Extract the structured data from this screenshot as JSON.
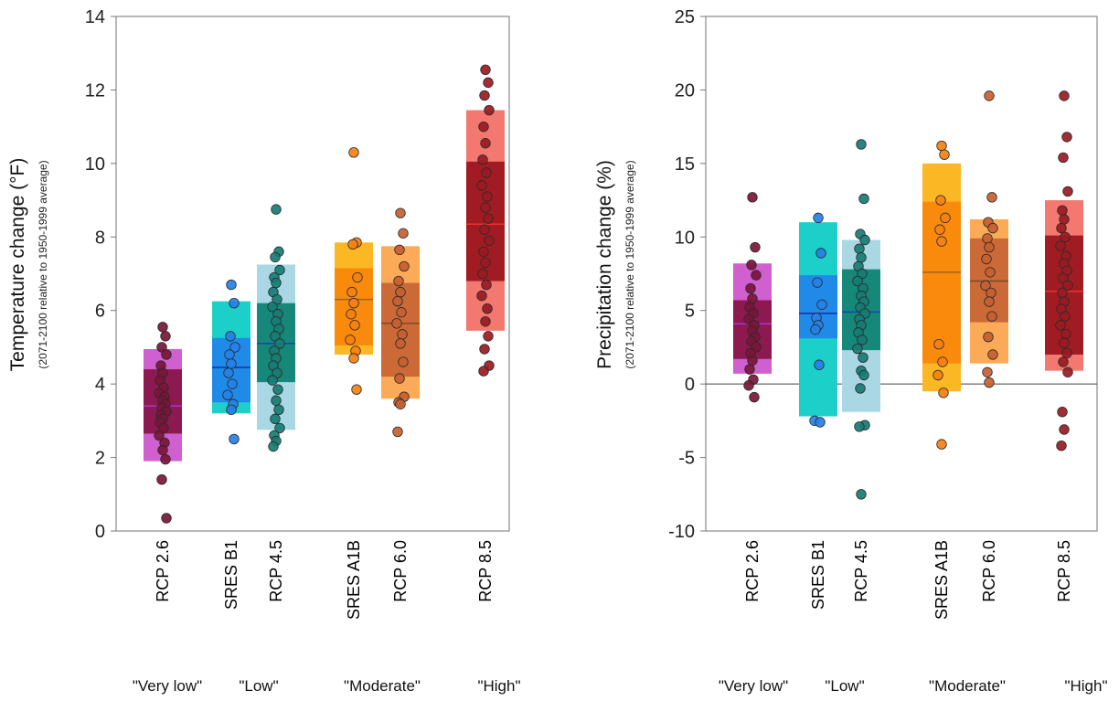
{
  "chart_data": [
    {
      "type": "scatter",
      "ylabel": "Temperature change (°F)",
      "ylabel_sub": "(2071-2100 relative to 1950-1999 average)",
      "ylim": [
        0,
        14
      ],
      "yticks": [
        "0",
        "2",
        "4",
        "6",
        "8",
        "10",
        "12",
        "14"
      ],
      "zero_line": false,
      "categories": [
        "RCP 2.6",
        "SRES B1",
        "RCP 4.5",
        "SRES A1B",
        "RCP 6.0",
        "RCP 8.5"
      ],
      "groups": [
        "\"Very low\"",
        "\"Low\"",
        "\"Moderate\"",
        "\"High\""
      ],
      "series": [
        {
          "category": "RCP 2.6",
          "range": [
            1.9,
            4.95
          ],
          "likely": [
            2.65,
            4.4
          ],
          "mean": 3.4,
          "points": [
            5.55,
            5.3,
            5.0,
            4.8,
            4.5,
            4.3,
            4.1,
            3.9,
            3.75,
            3.65,
            3.55,
            3.45,
            3.35,
            3.25,
            3.15,
            3.05,
            2.95,
            2.8,
            2.6,
            2.4,
            2.2,
            1.95,
            1.4,
            0.35
          ]
        },
        {
          "category": "SRES B1",
          "range": [
            3.2,
            6.25
          ],
          "likely": [
            3.5,
            5.25
          ],
          "mean": 4.45,
          "points": [
            6.7,
            6.2,
            5.3,
            5.0,
            4.8,
            4.55,
            4.3,
            4.0,
            3.7,
            3.45,
            3.3,
            2.5
          ]
        },
        {
          "category": "RCP 4.5",
          "range": [
            2.75,
            7.25
          ],
          "likely": [
            4.05,
            6.2
          ],
          "mean": 5.1,
          "points": [
            8.75,
            7.6,
            7.45,
            7.1,
            6.9,
            6.75,
            6.5,
            6.3,
            6.1,
            5.9,
            5.7,
            5.5,
            5.3,
            5.1,
            4.9,
            4.7,
            4.5,
            4.3,
            4.1,
            3.85,
            3.55,
            3.3,
            3.05,
            2.8,
            2.6,
            2.45,
            2.3
          ]
        },
        {
          "category": "SRES A1B",
          "range": [
            4.8,
            7.85
          ],
          "likely": [
            5.05,
            7.15
          ],
          "mean": 6.3,
          "points": [
            10.3,
            7.85,
            7.8,
            6.9,
            6.5,
            6.2,
            5.9,
            5.6,
            5.2,
            4.9,
            4.7,
            3.85
          ]
        },
        {
          "category": "RCP 6.0",
          "range": [
            3.6,
            7.75
          ],
          "likely": [
            4.2,
            6.75
          ],
          "mean": 5.65,
          "points": [
            8.65,
            8.1,
            7.65,
            7.2,
            6.8,
            6.5,
            6.25,
            5.95,
            5.65,
            5.35,
            5.1,
            4.6,
            4.15,
            3.65,
            3.5,
            3.45,
            2.7
          ]
        },
        {
          "category": "RCP 8.5",
          "range": [
            5.45,
            11.45
          ],
          "likely": [
            6.8,
            10.05
          ],
          "mean": 8.35,
          "points": [
            12.55,
            12.2,
            11.85,
            11.45,
            11.0,
            10.55,
            10.1,
            9.75,
            9.4,
            9.1,
            8.8,
            8.5,
            8.2,
            7.9,
            7.6,
            7.3,
            7.0,
            6.7,
            6.4,
            6.05,
            5.7,
            5.3,
            4.95,
            4.5,
            4.35
          ]
        }
      ]
    },
    {
      "type": "scatter",
      "ylabel": "Precipitation change (%)",
      "ylabel_sub": "(2071-2100 relative to 1950-1999 average)",
      "ylim": [
        -10,
        25
      ],
      "yticks": [
        "-10",
        "-5",
        "0",
        "5",
        "10",
        "15",
        "20",
        "25"
      ],
      "zero_line": true,
      "categories": [
        "RCP 2.6",
        "SRES B1",
        "RCP 4.5",
        "SRES A1B",
        "RCP 6.0",
        "RCP 8.5"
      ],
      "groups": [
        "\"Very low\"",
        "\"Low\"",
        "\"Moderate\"",
        "\"High\""
      ],
      "series": [
        {
          "category": "RCP 2.6",
          "range": [
            0.7,
            8.2
          ],
          "likely": [
            1.7,
            5.7
          ],
          "mean": 4.1,
          "points": [
            12.7,
            9.3,
            8.1,
            7.4,
            6.5,
            5.8,
            5.2,
            4.8,
            4.4,
            4.0,
            3.6,
            3.2,
            2.9,
            2.5,
            2.1,
            1.6,
            1.0,
            0.3,
            -0.1,
            -0.9
          ]
        },
        {
          "category": "SRES B1",
          "range": [
            -2.2,
            11.0
          ],
          "likely": [
            3.1,
            7.4
          ],
          "mean": 4.8,
          "points": [
            11.3,
            8.9,
            6.9,
            5.4,
            4.5,
            4.0,
            3.7,
            1.3,
            -2.5,
            -2.6
          ]
        },
        {
          "category": "RCP 4.5",
          "range": [
            -1.9,
            9.8
          ],
          "likely": [
            2.3,
            7.8
          ],
          "mean": 4.9,
          "points": [
            16.3,
            12.6,
            10.2,
            9.8,
            9.2,
            8.6,
            8.0,
            7.5,
            7.0,
            6.5,
            6.0,
            5.6,
            5.2,
            4.8,
            4.4,
            4.0,
            3.5,
            3.0,
            2.4,
            1.8,
            0.9,
            0.6,
            -0.3,
            -2.8,
            -2.9,
            -7.5
          ]
        },
        {
          "category": "SRES A1B",
          "range": [
            -0.5,
            15.0
          ],
          "likely": [
            1.4,
            12.4
          ],
          "mean": 7.6,
          "points": [
            16.2,
            15.6,
            12.5,
            11.3,
            10.5,
            9.7,
            2.7,
            1.5,
            0.6,
            -0.6,
            -4.1
          ]
        },
        {
          "category": "RCP 6.0",
          "range": [
            1.4,
            11.2
          ],
          "likely": [
            4.2,
            9.9
          ],
          "mean": 7.0,
          "points": [
            19.6,
            12.7,
            11.0,
            10.6,
            9.9,
            9.3,
            8.5,
            7.6,
            6.7,
            6.2,
            5.6,
            4.6,
            3.2,
            2.0,
            0.8,
            0.1
          ]
        },
        {
          "category": "RCP 8.5",
          "range": [
            0.9,
            12.5
          ],
          "likely": [
            2.0,
            10.1
          ],
          "mean": 6.3,
          "points": [
            19.6,
            16.8,
            15.4,
            13.1,
            11.8,
            11.2,
            10.6,
            10.0,
            9.4,
            8.7,
            8.2,
            7.7,
            7.2,
            6.7,
            6.2,
            5.6,
            5.1,
            4.6,
            4.0,
            3.4,
            2.8,
            2.1,
            1.5,
            0.8,
            -1.9,
            -3.1,
            -4.2
          ]
        }
      ]
    }
  ],
  "colors": {
    "RCP 2.6": {
      "outer": "#d060d0",
      "inner": "#8c1a50",
      "dot": "#7a1538",
      "mean": "#b030d0"
    },
    "SRES B1": {
      "outer": "#1ccfc8",
      "inner": "#1f8ae8",
      "dot": "#2480e8",
      "mean": "#1030b0"
    },
    "RCP 4.5": {
      "outer": "#a9d8e4",
      "inner": "#16887a",
      "dot": "#167c74",
      "mean": "#1840c0"
    },
    "SRES A1B": {
      "outer": "#fbb824",
      "inner": "#fa8a0c",
      "dot": "#f58012",
      "mean": "#a06020"
    },
    "RCP 6.0": {
      "outer": "#fbaa58",
      "inner": "#cb6a36",
      "dot": "#c65f30",
      "mean": "#7a4a2a"
    },
    "RCP 8.5": {
      "outer": "#f27870",
      "inner": "#a11c22",
      "dot": "#9a1a22",
      "mean": "#ee3030"
    }
  }
}
